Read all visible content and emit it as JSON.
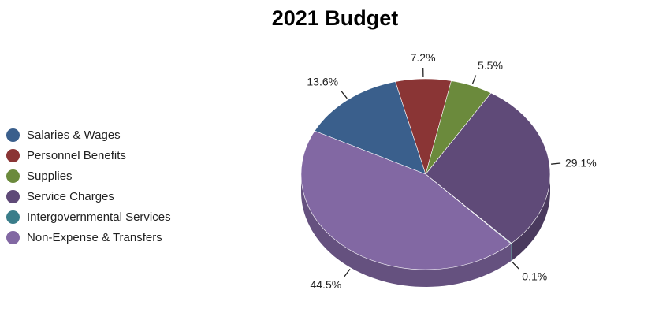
{
  "chart_data": {
    "type": "pie",
    "title": "2021 Budget",
    "style": "3d",
    "legend_position": "left",
    "slices": [
      {
        "label": "Salaries & Wages",
        "value": 13.6,
        "value_label": "13.6%",
        "color": "#3a5f8c"
      },
      {
        "label": "Personnel Benefits",
        "value": 7.2,
        "value_label": "7.2%",
        "color": "#8a3535"
      },
      {
        "label": "Supplies",
        "value": 5.5,
        "value_label": "5.5%",
        "color": "#6b8a3c"
      },
      {
        "label": "Service Charges",
        "value": 29.1,
        "value_label": "29.1%",
        "color": "#5f4a78"
      },
      {
        "label": "Intergovernmental Services",
        "value": 0.1,
        "value_label": "0.1%",
        "color": "#3a7d8a"
      },
      {
        "label": "Non-Expense & Transfers",
        "value": 44.5,
        "value_label": "44.5%",
        "color": "#8268a3"
      }
    ]
  }
}
